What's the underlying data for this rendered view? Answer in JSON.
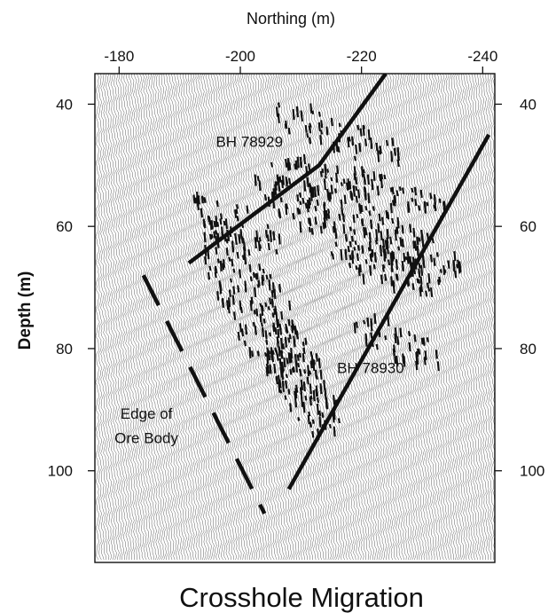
{
  "chart_data": {
    "type": "line",
    "title": "Crosshole Migration",
    "xlabel": "Northing (m)",
    "ylabel": "Depth (m)",
    "xlim": [
      -176,
      -242
    ],
    "ylim": [
      35,
      115
    ],
    "x_ticks": [
      -180,
      -200,
      -220,
      -240
    ],
    "y_ticks": [
      40,
      60,
      80,
      100
    ],
    "y_ticks_right": [
      40,
      60,
      80,
      100
    ],
    "grid": false,
    "legend": "none",
    "series": [
      {
        "name": "BH 78929",
        "style": "solid",
        "x": [
          -191.5,
          -213,
          -224
        ],
        "y": [
          66,
          50,
          35
        ]
      },
      {
        "name": "BH 78930",
        "style": "solid",
        "x": [
          -208,
          -241
        ],
        "y": [
          103,
          45
        ]
      },
      {
        "name": "Edge of Ore Body",
        "style": "dashed",
        "x": [
          -184,
          -204
        ],
        "y": [
          68,
          107
        ]
      }
    ],
    "annotations": [
      {
        "text": "BH 78929",
        "x": -201.5,
        "y": 47
      },
      {
        "text": "BH 78930",
        "x": -221.5,
        "y": 84
      },
      {
        "text": "Edge of",
        "x": -184.5,
        "y": 91.5
      },
      {
        "text": "Ore Body",
        "x": -184.5,
        "y": 95.5
      }
    ],
    "background": "seismic wiggle-trace section",
    "colors": {
      "line": "#111111",
      "wiggle": "#4a4a4a",
      "reflector": "#111111"
    }
  }
}
